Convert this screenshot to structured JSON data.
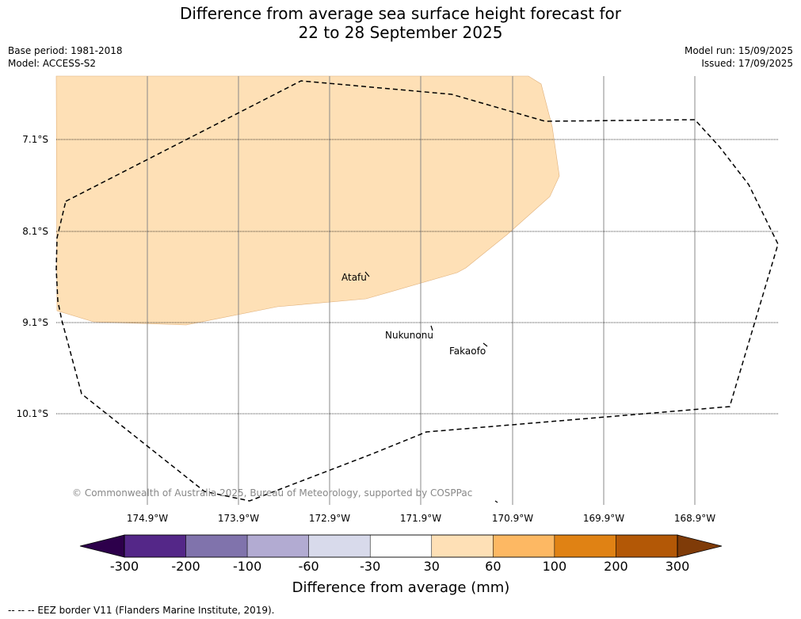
{
  "title": {
    "line1": "Difference from average sea surface height forecast for",
    "line2": "22 to 28 September 2025"
  },
  "meta": {
    "base_period": "Base period: 1981-2018",
    "model": "Model: ACCESS-S2",
    "model_run": "Model run: 15/09/2025",
    "issued": "Issued: 17/09/2025"
  },
  "map": {
    "lat_labels": [
      "7.1°S",
      "8.1°S",
      "9.1°S",
      "10.1°S"
    ],
    "lon_labels": [
      "174.9°W",
      "173.9°W",
      "172.9°W",
      "171.9°W",
      "170.9°W",
      "169.9°W",
      "168.9°W"
    ],
    "places": [
      "Atafu",
      "Nukunonu",
      "Fakaofo"
    ],
    "copyright": "© Commonwealth of Australia 2025, Bureau of Meteorology, supported by COSPPac",
    "anomaly_fill_color": "#fee0b6",
    "eez_color": "#000000"
  },
  "colorbar": {
    "label": "Difference from average (mm)",
    "ticks": [
      "-300",
      "-200",
      "-100",
      "-60",
      "-30",
      "30",
      "60",
      "100",
      "200",
      "300"
    ],
    "colors": [
      "#542788",
      "#8073ac",
      "#b2abd2",
      "#d8daeb",
      "#ffffff",
      "#fee0b6",
      "#fdb863",
      "#e08214",
      "#b35806"
    ],
    "under_color": "#2d004b",
    "over_color": "#7f3b08"
  },
  "footer": {
    "legend_line": "--  --  -- EEZ border V11 (Flanders Marine Institute, 2019)."
  }
}
